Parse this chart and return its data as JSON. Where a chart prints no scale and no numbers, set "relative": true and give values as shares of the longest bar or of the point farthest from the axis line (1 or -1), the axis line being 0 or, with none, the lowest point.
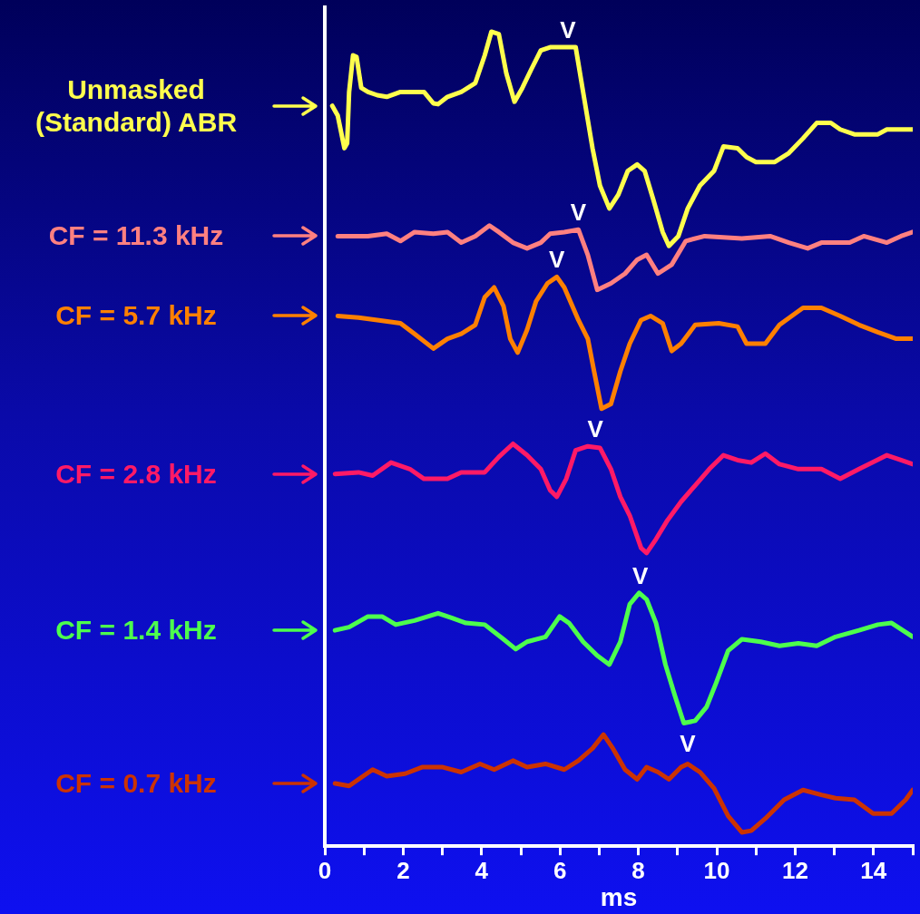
{
  "chart_data": {
    "type": "line",
    "relative": true,
    "xlabel": "ms",
    "xlim": [
      0,
      15
    ],
    "xticks": [
      0,
      {
        "value": 1,
        "label": null
      },
      2,
      {
        "value": 3,
        "label": null
      },
      4,
      {
        "value": 5,
        "label": null
      },
      6,
      {
        "value": 7,
        "label": null
      },
      8,
      {
        "value": 9,
        "label": null
      },
      10,
      {
        "value": 11,
        "label": null
      },
      12,
      {
        "value": 13,
        "label": null
      },
      14,
      {
        "value": 15,
        "label": null
      }
    ],
    "grid": false,
    "legend": "left",
    "marker": "none",
    "line_style": "solid",
    "series": [
      {
        "name": "Unmasked (Standard) ABR",
        "color": "#ffff4d",
        "x": [
          0.19,
          0.33,
          0.5,
          0.57,
          0.62,
          0.72,
          0.81,
          0.93,
          1.1,
          1.34,
          1.58,
          1.93,
          2.29,
          2.53,
          2.77,
          2.89,
          3.13,
          3.48,
          3.84,
          4.08,
          4.25,
          4.44,
          4.63,
          4.84,
          5.04,
          5.27,
          5.51,
          5.75,
          6.11,
          6.4,
          6.59,
          6.83,
          7.02,
          7.26,
          7.49,
          7.73,
          7.97,
          8.16,
          8.38,
          8.62,
          8.78,
          9.02,
          9.26,
          9.57,
          9.93,
          10.17,
          10.53,
          10.76,
          11.0,
          11.48,
          11.84,
          12.2,
          12.55,
          12.91,
          13.15,
          13.51,
          14.11,
          14.34,
          15.0
        ],
        "values": [
          0.909,
          0.897,
          0.857,
          0.863,
          0.926,
          0.971,
          0.969,
          0.931,
          0.926,
          0.922,
          0.92,
          0.926,
          0.926,
          0.926,
          0.912,
          0.911,
          0.92,
          0.926,
          0.937,
          0.971,
          1.0,
          0.997,
          0.949,
          0.914,
          0.931,
          0.954,
          0.977,
          0.981,
          0.981,
          0.981,
          0.926,
          0.857,
          0.811,
          0.783,
          0.8,
          0.829,
          0.837,
          0.829,
          0.794,
          0.754,
          0.737,
          0.749,
          0.783,
          0.811,
          0.829,
          0.859,
          0.857,
          0.846,
          0.84,
          0.84,
          0.851,
          0.869,
          0.888,
          0.888,
          0.88,
          0.874,
          0.874,
          0.88,
          0.88
        ]
      },
      {
        "name": "CF = 11.3 kHz",
        "color": "#ff8080",
        "x": [
          0.33,
          1.1,
          1.58,
          1.93,
          2.29,
          2.77,
          3.13,
          3.48,
          3.84,
          4.2,
          4.44,
          4.8,
          5.16,
          5.51,
          5.75,
          6.11,
          6.47,
          6.71,
          6.95,
          7.3,
          7.66,
          7.97,
          8.21,
          8.5,
          8.85,
          9.21,
          9.69,
          10.64,
          11.36,
          11.84,
          12.32,
          12.67,
          13.39,
          13.75,
          14.34,
          14.7,
          15.0
        ],
        "values": [
          0.749,
          0.749,
          0.752,
          0.743,
          0.754,
          0.752,
          0.754,
          0.741,
          0.749,
          0.762,
          0.754,
          0.741,
          0.734,
          0.741,
          0.752,
          0.754,
          0.757,
          0.726,
          0.683,
          0.691,
          0.703,
          0.72,
          0.726,
          0.703,
          0.714,
          0.743,
          0.749,
          0.746,
          0.749,
          0.741,
          0.734,
          0.741,
          0.741,
          0.749,
          0.741,
          0.749,
          0.754
        ]
      },
      {
        "name": "CF = 5.7 kHz",
        "color": "#ff8000",
        "x": [
          0.33,
          0.86,
          1.34,
          1.93,
          2.29,
          2.77,
          3.13,
          3.48,
          3.84,
          4.08,
          4.32,
          4.56,
          4.73,
          4.92,
          5.16,
          5.39,
          5.68,
          5.92,
          6.11,
          6.47,
          6.71,
          6.87,
          7.06,
          7.3,
          7.54,
          7.78,
          8.07,
          8.31,
          8.62,
          8.85,
          9.09,
          9.45,
          10.05,
          10.53,
          10.76,
          11.24,
          11.6,
          12.2,
          12.67,
          13.15,
          13.63,
          14.11,
          14.58,
          15.0
        ],
        "values": [
          0.651,
          0.649,
          0.646,
          0.642,
          0.629,
          0.611,
          0.623,
          0.629,
          0.64,
          0.674,
          0.686,
          0.663,
          0.623,
          0.606,
          0.634,
          0.669,
          0.691,
          0.699,
          0.686,
          0.646,
          0.623,
          0.583,
          0.537,
          0.543,
          0.583,
          0.617,
          0.646,
          0.651,
          0.642,
          0.608,
          0.617,
          0.64,
          0.642,
          0.638,
          0.617,
          0.617,
          0.64,
          0.661,
          0.661,
          0.651,
          0.64,
          0.631,
          0.623,
          0.623
        ]
      },
      {
        "name": "CF = 2.8 kHz",
        "color": "#ff1a66",
        "x": [
          0.26,
          0.86,
          1.22,
          1.69,
          2.17,
          2.53,
          3.13,
          3.48,
          4.08,
          4.44,
          4.8,
          5.16,
          5.51,
          5.75,
          5.92,
          6.16,
          6.4,
          6.71,
          7.02,
          7.3,
          7.54,
          7.78,
          8.07,
          8.21,
          8.45,
          8.74,
          9.09,
          9.45,
          9.81,
          10.17,
          10.53,
          10.88,
          11.24,
          11.6,
          12.08,
          12.67,
          13.15,
          13.63,
          14.34,
          14.7,
          15.0
        ],
        "values": [
          0.457,
          0.459,
          0.455,
          0.471,
          0.463,
          0.451,
          0.451,
          0.459,
          0.459,
          0.478,
          0.494,
          0.48,
          0.463,
          0.437,
          0.429,
          0.451,
          0.486,
          0.491,
          0.489,
          0.463,
          0.429,
          0.406,
          0.366,
          0.36,
          0.377,
          0.4,
          0.423,
          0.443,
          0.463,
          0.48,
          0.474,
          0.471,
          0.482,
          0.469,
          0.463,
          0.463,
          0.451,
          0.463,
          0.48,
          0.474,
          0.469
        ]
      },
      {
        "name": "CF = 1.4 kHz",
        "color": "#4dff4d",
        "x": [
          0.26,
          0.62,
          1.1,
          1.46,
          1.81,
          2.29,
          2.89,
          3.25,
          3.6,
          4.08,
          4.56,
          4.87,
          5.16,
          5.63,
          5.99,
          6.23,
          6.59,
          6.95,
          7.26,
          7.54,
          7.78,
          8.02,
          8.21,
          8.45,
          8.69,
          8.93,
          9.16,
          9.45,
          9.74,
          9.98,
          10.29,
          10.64,
          11.12,
          11.6,
          12.08,
          12.55,
          13.03,
          13.63,
          14.11,
          14.46,
          15.0
        ],
        "values": [
          0.265,
          0.269,
          0.282,
          0.282,
          0.272,
          0.277,
          0.286,
          0.28,
          0.274,
          0.272,
          0.254,
          0.242,
          0.251,
          0.257,
          0.282,
          0.274,
          0.251,
          0.234,
          0.223,
          0.251,
          0.297,
          0.311,
          0.303,
          0.274,
          0.223,
          0.185,
          0.151,
          0.154,
          0.171,
          0.2,
          0.24,
          0.254,
          0.251,
          0.246,
          0.249,
          0.246,
          0.257,
          0.265,
          0.272,
          0.274,
          0.257
        ]
      },
      {
        "name": "CF = 0.7 kHz",
        "color": "#cc3300",
        "x": [
          0.26,
          0.62,
          0.86,
          1.22,
          1.58,
          2.05,
          2.48,
          3.01,
          3.48,
          3.96,
          4.32,
          4.8,
          5.16,
          5.63,
          6.11,
          6.47,
          6.83,
          7.11,
          7.35,
          7.66,
          7.97,
          8.21,
          8.5,
          8.78,
          9.09,
          9.26,
          9.57,
          9.93,
          10.29,
          10.64,
          10.88,
          11.24,
          11.72,
          12.2,
          12.67,
          13.03,
          13.51,
          13.99,
          14.46,
          14.82,
          15.0
        ],
        "values": [
          0.077,
          0.074,
          0.082,
          0.094,
          0.086,
          0.089,
          0.097,
          0.097,
          0.091,
          0.101,
          0.094,
          0.105,
          0.097,
          0.101,
          0.094,
          0.105,
          0.12,
          0.137,
          0.12,
          0.094,
          0.082,
          0.097,
          0.091,
          0.082,
          0.097,
          0.101,
          0.091,
          0.071,
          0.037,
          0.017,
          0.019,
          0.034,
          0.057,
          0.069,
          0.063,
          0.059,
          0.057,
          0.04,
          0.04,
          0.057,
          0.069
        ]
      }
    ],
    "annotations": [
      {
        "text": "V",
        "x": 6.2,
        "y": 0.981
      },
      {
        "text": "V",
        "x": 6.47,
        "y": 0.757
      },
      {
        "text": "V",
        "x": 5.92,
        "y": 0.699
      },
      {
        "text": "V",
        "x": 6.9,
        "y": 0.491
      },
      {
        "text": "V",
        "x": 8.05,
        "y": 0.311
      },
      {
        "text": "V",
        "x": 9.26,
        "y": 0.105
      }
    ]
  }
}
